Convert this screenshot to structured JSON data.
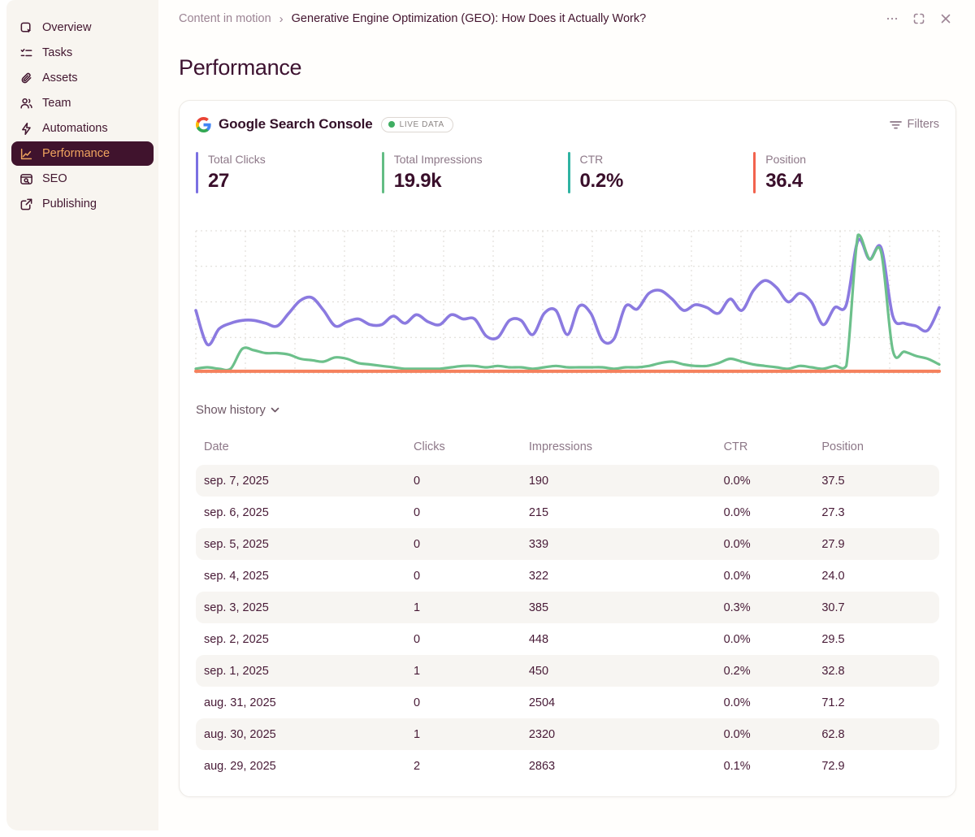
{
  "sidebar": {
    "items": [
      {
        "label": "Overview"
      },
      {
        "label": "Tasks"
      },
      {
        "label": "Assets"
      },
      {
        "label": "Team"
      },
      {
        "label": "Automations"
      },
      {
        "label": "Performance",
        "selected": true
      },
      {
        "label": "SEO"
      },
      {
        "label": "Publishing"
      }
    ]
  },
  "breadcrumb": {
    "parent": "Content in motion",
    "separator": "›",
    "current": "Generative Engine Optimization (GEO): How Does it Actually Work?"
  },
  "page": {
    "title": "Performance"
  },
  "card": {
    "source_title": "Google Search Console",
    "badge": {
      "label": "LIVE DATA",
      "dot_color": "#3fae62"
    },
    "filters_label": "Filters"
  },
  "metrics": [
    {
      "label": "Total Clicks",
      "value": "27",
      "color": "#7b70e2"
    },
    {
      "label": "Total Impressions",
      "value": "19.9k",
      "color": "#63bd84"
    },
    {
      "label": "CTR",
      "value": "0.2%",
      "color": "#2fb3a2"
    },
    {
      "label": "Position",
      "value": "36.4",
      "color": "#f2634e"
    }
  ],
  "history": {
    "toggle_label": "Show history"
  },
  "table": {
    "columns": [
      "Date",
      "Clicks",
      "Impressions",
      "CTR",
      "Position"
    ],
    "rows": [
      {
        "date": "sep. 7, 2025",
        "clicks": "0",
        "impressions": "190",
        "ctr": "0.0%",
        "position": "37.5"
      },
      {
        "date": "sep. 6, 2025",
        "clicks": "0",
        "impressions": "215",
        "ctr": "0.0%",
        "position": "27.3"
      },
      {
        "date": "sep. 5, 2025",
        "clicks": "0",
        "impressions": "339",
        "ctr": "0.0%",
        "position": "27.9"
      },
      {
        "date": "sep. 4, 2025",
        "clicks": "0",
        "impressions": "322",
        "ctr": "0.0%",
        "position": "24.0"
      },
      {
        "date": "sep. 3, 2025",
        "clicks": "1",
        "impressions": "385",
        "ctr": "0.3%",
        "position": "30.7"
      },
      {
        "date": "sep. 2, 2025",
        "clicks": "0",
        "impressions": "448",
        "ctr": "0.0%",
        "position": "29.5"
      },
      {
        "date": "sep. 1, 2025",
        "clicks": "1",
        "impressions": "450",
        "ctr": "0.2%",
        "position": "32.8"
      },
      {
        "date": "aug. 31, 2025",
        "clicks": "0",
        "impressions": "2504",
        "ctr": "0.0%",
        "position": "71.2"
      },
      {
        "date": "aug. 30, 2025",
        "clicks": "1",
        "impressions": "2320",
        "ctr": "0.0%",
        "position": "62.8"
      },
      {
        "date": "aug. 29, 2025",
        "clicks": "2",
        "impressions": "2863",
        "ctr": "0.1%",
        "position": "72.9"
      }
    ]
  },
  "chart_data": {
    "type": "line",
    "title": "Google Search Console performance over time (no axis labels shown)",
    "x_note": "daily points over ~3 months ending sep. 7, 2025; last 10 days match the table rows",
    "normalization": "each series is plotted as fraction of chart height (independent per-series scaling)",
    "grid": true,
    "legend": false,
    "grid_style": {
      "color": "#dcd8d3",
      "dash": "2 4",
      "v_lines": 16,
      "h_lines": 5
    },
    "series": [
      {
        "name": "Position",
        "color": "#8b7ae0",
        "stroke_width": 3.6,
        "values_norm": [
          0.44,
          0.2,
          0.31,
          0.35,
          0.37,
          0.37,
          0.35,
          0.33,
          0.42,
          0.51,
          0.53,
          0.44,
          0.33,
          0.36,
          0.38,
          0.34,
          0.34,
          0.4,
          0.35,
          0.41,
          0.36,
          0.34,
          0.41,
          0.38,
          0.38,
          0.26,
          0.25,
          0.37,
          0.37,
          0.27,
          0.42,
          0.44,
          0.27,
          0.47,
          0.42,
          0.23,
          0.24,
          0.47,
          0.45,
          0.56,
          0.58,
          0.52,
          0.44,
          0.48,
          0.46,
          0.42,
          0.52,
          0.44,
          0.58,
          0.65,
          0.6,
          0.5,
          0.56,
          0.5,
          0.34,
          0.46,
          0.48,
          0.93,
          0.8,
          0.88,
          0.4,
          0.35,
          0.33,
          0.3,
          0.46
        ]
      },
      {
        "name": "Impressions",
        "color": "#6cc08b",
        "stroke_width": 3.2,
        "values_norm": [
          0.03,
          0.04,
          0.03,
          0.03,
          0.17,
          0.16,
          0.14,
          0.14,
          0.13,
          0.1,
          0.09,
          0.08,
          0.11,
          0.1,
          0.07,
          0.06,
          0.05,
          0.04,
          0.03,
          0.03,
          0.03,
          0.03,
          0.04,
          0.05,
          0.05,
          0.04,
          0.05,
          0.04,
          0.04,
          0.03,
          0.04,
          0.05,
          0.04,
          0.04,
          0.04,
          0.04,
          0.03,
          0.04,
          0.04,
          0.05,
          0.07,
          0.08,
          0.06,
          0.05,
          0.05,
          0.07,
          0.1,
          0.08,
          0.06,
          0.05,
          0.04,
          0.03,
          0.05,
          0.04,
          0.03,
          0.05,
          0.05,
          0.97,
          0.8,
          0.85,
          0.16,
          0.15,
          0.12,
          0.1,
          0.06
        ]
      },
      {
        "name": "Clicks",
        "color": "#f5815d",
        "stroke_width": 4,
        "values_norm": [
          0.012,
          0.012
        ]
      }
    ]
  }
}
